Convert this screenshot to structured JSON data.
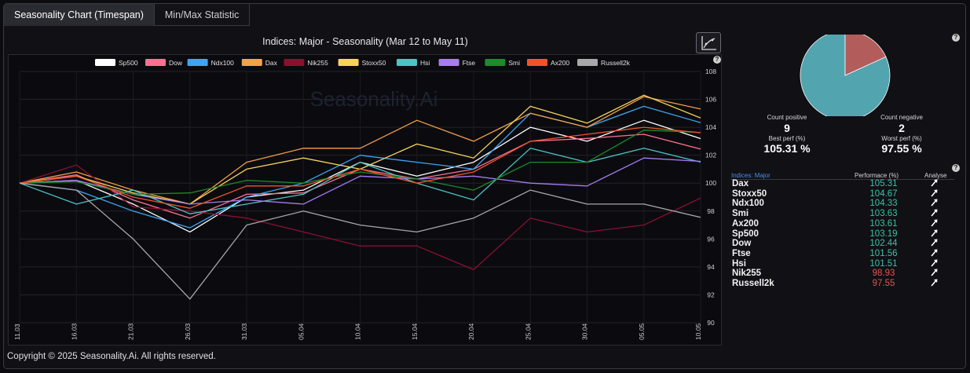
{
  "tabs": [
    {
      "label": "Seasonality Chart (Timespan)",
      "active": true
    },
    {
      "label": "Min/Max Statistic",
      "active": false
    }
  ],
  "chart_title": "Indices: Major - Seasonality (Mar 12 to May 11)",
  "watermark": "Seasonality.Ai",
  "help_glyph": "?",
  "footer": "Copyright © 2025 Seasonality.Ai. All rights reserved.",
  "chart_data": {
    "type": "line",
    "x": [
      "11.03",
      "16.03",
      "21.03",
      "26.03",
      "31.03",
      "05.04",
      "10.04",
      "15.04",
      "20.04",
      "25.04",
      "30.04",
      "05.05",
      "10.05"
    ],
    "ylim": [
      90,
      108
    ],
    "yticks": [
      90,
      92,
      94,
      96,
      98,
      100,
      102,
      104,
      106,
      108
    ],
    "grid": true,
    "legend": "top",
    "series": [
      {
        "name": "Sp500",
        "color": "#ffffff",
        "values": [
          100,
          100.2,
          98.5,
          96.5,
          99,
          99.5,
          101.5,
          100.5,
          101.5,
          104,
          103,
          104.5,
          103.19
        ]
      },
      {
        "name": "Dow",
        "color": "#ff6f91",
        "values": [
          100,
          100.6,
          98.8,
          97.5,
          99.2,
          99.3,
          101,
          100.3,
          101,
          103,
          103.2,
          103.5,
          102.44
        ]
      },
      {
        "name": "Ndx100",
        "color": "#3fa5f0",
        "values": [
          100,
          99.5,
          98,
          96.8,
          99,
          100,
          102,
          101.5,
          101,
          105,
          104,
          105.5,
          104.33
        ]
      },
      {
        "name": "Dax",
        "color": "#f5a04a",
        "values": [
          100,
          100.8,
          99.5,
          98.5,
          101.5,
          102.5,
          102.5,
          104.5,
          103,
          105,
          104,
          106.2,
          105.31
        ]
      },
      {
        "name": "Nik255",
        "color": "#8a1030",
        "values": [
          100,
          101.3,
          98.3,
          98,
          97.5,
          96.5,
          95.5,
          95.5,
          93.8,
          97.5,
          96.5,
          97,
          98.93
        ]
      },
      {
        "name": "Stoxx50",
        "color": "#f7d35a",
        "values": [
          100,
          100.5,
          99.3,
          98.5,
          101,
          101.8,
          101,
          102.8,
          101.8,
          105.5,
          104.3,
          106.3,
          104.67
        ]
      },
      {
        "name": "Hsi",
        "color": "#4cc4c4",
        "values": [
          100,
          98.5,
          99.5,
          97.8,
          98.5,
          99.2,
          101.5,
          100,
          98.8,
          102.5,
          101.5,
          102.5,
          101.51
        ]
      },
      {
        "name": "Ftse",
        "color": "#a77cf3",
        "values": [
          100,
          100.2,
          99.2,
          98.5,
          98.8,
          98.5,
          100.5,
          100.3,
          100.5,
          100,
          99.8,
          101.8,
          101.56
        ]
      },
      {
        "name": "Smi",
        "color": "#1d8a2c",
        "values": [
          100,
          100.1,
          99.2,
          99.3,
          100.2,
          100,
          100.8,
          100.3,
          99.5,
          101.5,
          101.5,
          103.8,
          103.63
        ]
      },
      {
        "name": "Ax200",
        "color": "#f0532c",
        "values": [
          100,
          100.5,
          99,
          98.2,
          99.8,
          99.8,
          101,
          100,
          100.8,
          103,
          103.5,
          104,
          103.61
        ]
      },
      {
        "name": "Russell2k",
        "color": "#a8a8a8",
        "values": [
          100,
          99.5,
          96,
          91.7,
          97,
          98,
          97,
          96.5,
          97.5,
          99.5,
          98.5,
          98.5,
          97.55
        ]
      }
    ]
  },
  "pie": {
    "positive": 9,
    "negative": 2,
    "positive_color": "#52a4ae",
    "negative_color": "#b35c5c"
  },
  "stats": {
    "count_positive_label": "Count positive",
    "count_positive": "9",
    "count_negative_label": "Count negative",
    "count_negative": "2",
    "best_perf_label": "Best perf (%)",
    "best_perf": "105.31 %",
    "worst_perf_label": "Worst perf (%)",
    "worst_perf": "97.55 %"
  },
  "table": {
    "headers": {
      "name": "Indices: Major",
      "perf": "Performace (%)",
      "analyse": "Analyse"
    },
    "rows": [
      {
        "name": "Dax",
        "perf": "105.31",
        "positive": true
      },
      {
        "name": "Stoxx50",
        "perf": "104.67",
        "positive": true
      },
      {
        "name": "Ndx100",
        "perf": "104.33",
        "positive": true
      },
      {
        "name": "Smi",
        "perf": "103.63",
        "positive": true
      },
      {
        "name": "Ax200",
        "perf": "103.61",
        "positive": true
      },
      {
        "name": "Sp500",
        "perf": "103.19",
        "positive": true
      },
      {
        "name": "Dow",
        "perf": "102.44",
        "positive": true
      },
      {
        "name": "Ftse",
        "perf": "101.56",
        "positive": true
      },
      {
        "name": "Hsi",
        "perf": "101.51",
        "positive": true
      },
      {
        "name": "Nik255",
        "perf": "98.93",
        "positive": false
      },
      {
        "name": "Russell2k",
        "perf": "97.55",
        "positive": false
      }
    ]
  }
}
